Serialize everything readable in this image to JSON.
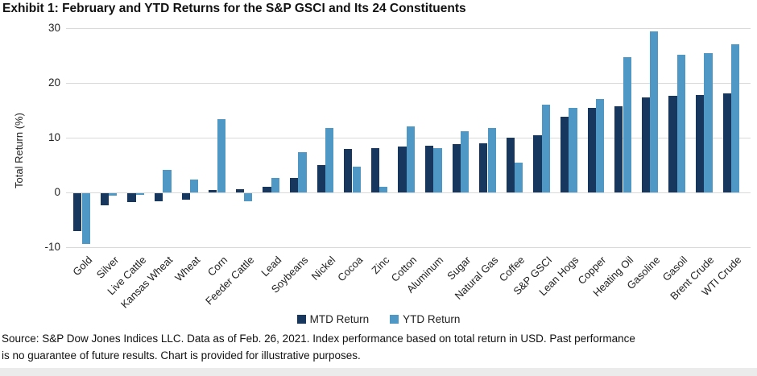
{
  "title": "Exhibit 1: February and YTD Returns for the S&P GSCI and Its 24 Constituents",
  "footer": {
    "line1": "Source: S&P Dow Jones Indices LLC. Data as of Feb. 26, 2021. Index performance based on total return in USD. Past performance",
    "line2": "is no guarantee of future results. Chart is provided for illustrative purposes."
  },
  "chart_data": {
    "type": "bar",
    "title": "Exhibit 1: February and YTD Returns for the S&P GSCI and Its 24 Constituents",
    "xlabel": "",
    "ylabel": "Total Return (%)",
    "ylim": [
      -10,
      30
    ],
    "yticks": [
      30,
      20,
      10,
      0,
      -10
    ],
    "grid": true,
    "gridline_color": "#d9d9d9",
    "legend_position": "bottom",
    "categories": [
      "Gold",
      "Silver",
      "Live Cattle",
      "Kansas Wheat",
      "Wheat",
      "Corn",
      "Feeder Cattle",
      "Lead",
      "Soybeans",
      "Nickel",
      "Cocoa",
      "Zinc",
      "Cotton",
      "Aluminum",
      "Sugar",
      "Natural Gas",
      "Coffee",
      "S&P GSCI",
      "Lean Hogs",
      "Copper",
      "Heating Oil",
      "Gasoline",
      "Gasoil",
      "Brent Crude",
      "WTI Crude"
    ],
    "series": [
      {
        "name": "MTD Return",
        "color": "#17375e",
        "values": [
          -6.9,
          -2.2,
          -1.6,
          -1.5,
          -1.2,
          0.4,
          0.6,
          1.1,
          2.6,
          5.0,
          7.9,
          8.1,
          8.4,
          8.6,
          8.8,
          9.0,
          10.0,
          10.5,
          13.8,
          15.5,
          15.8,
          17.4,
          17.6,
          17.8,
          18.1
        ]
      },
      {
        "name": "YTD Return",
        "color": "#4f97c5",
        "values": [
          -9.3,
          -0.4,
          -0.3,
          4.1,
          2.3,
          13.4,
          -1.4,
          2.6,
          7.3,
          11.7,
          4.7,
          1.0,
          12.1,
          8.1,
          11.2,
          11.8,
          5.4,
          16.1,
          15.4,
          17.1,
          24.7,
          29.4,
          25.2,
          25.5,
          27.1
        ]
      }
    ]
  }
}
